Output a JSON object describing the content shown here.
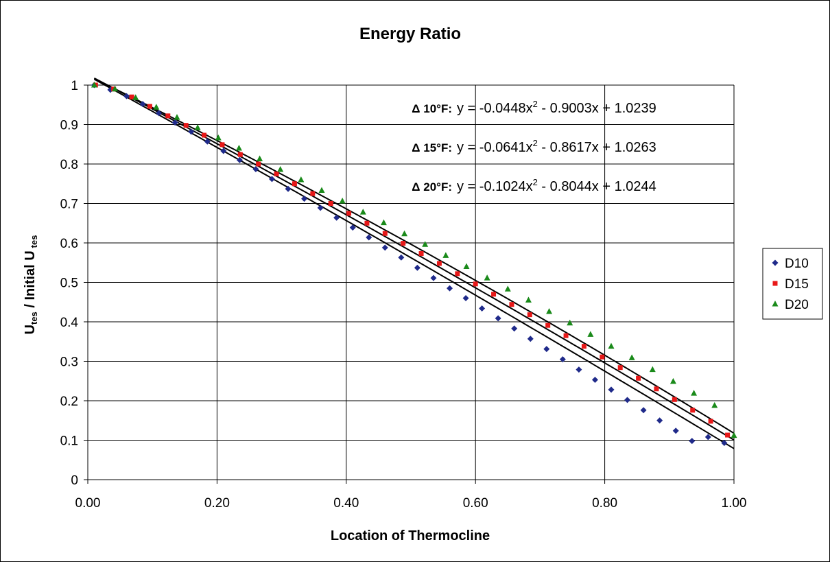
{
  "chart_data": {
    "type": "scatter",
    "title": "Energy Ratio",
    "xlabel": "Location of Thermocline",
    "ylabel": {
      "main1": "U",
      "sub1": "tes",
      "main2": " / Initial U",
      "sub2": "tes"
    },
    "xlim": [
      0,
      1
    ],
    "ylim": [
      0,
      1
    ],
    "x_ticks": [
      "0.00",
      "0.20",
      "0.40",
      "0.60",
      "0.80",
      "1.00"
    ],
    "y_ticks": [
      "0",
      "0.1",
      "0.2",
      "0.3",
      "0.4",
      "0.5",
      "0.6",
      "0.7",
      "0.8",
      "0.9",
      "1"
    ],
    "grid": true,
    "legend_position": "right",
    "series": [
      {
        "name": "D10",
        "marker": "diamond",
        "color": "#1f2a8a",
        "x": [
          0.01,
          0.035,
          0.06,
          0.085,
          0.11,
          0.135,
          0.16,
          0.185,
          0.21,
          0.235,
          0.26,
          0.285,
          0.31,
          0.335,
          0.36,
          0.385,
          0.41,
          0.435,
          0.46,
          0.485,
          0.51,
          0.535,
          0.56,
          0.585,
          0.61,
          0.635,
          0.66,
          0.685,
          0.71,
          0.735,
          0.76,
          0.785,
          0.81,
          0.835,
          0.86,
          0.885,
          0.91,
          0.935,
          0.96,
          0.985
        ],
        "y": [
          1.0,
          0.988,
          0.972,
          0.952,
          0.929,
          0.905,
          0.882,
          0.857,
          0.833,
          0.81,
          0.787,
          0.762,
          0.737,
          0.712,
          0.689,
          0.664,
          0.639,
          0.614,
          0.588,
          0.563,
          0.537,
          0.511,
          0.485,
          0.46,
          0.434,
          0.409,
          0.383,
          0.357,
          0.331,
          0.305,
          0.279,
          0.253,
          0.228,
          0.202,
          0.176,
          0.15,
          0.124,
          0.098,
          0.108,
          0.093
        ]
      },
      {
        "name": "D15",
        "marker": "square",
        "color": "#e81818",
        "x": [
          0.012,
          0.04,
          0.068,
          0.096,
          0.124,
          0.152,
          0.18,
          0.208,
          0.236,
          0.264,
          0.292,
          0.32,
          0.348,
          0.376,
          0.404,
          0.432,
          0.46,
          0.488,
          0.516,
          0.544,
          0.572,
          0.6,
          0.628,
          0.656,
          0.684,
          0.712,
          0.74,
          0.768,
          0.796,
          0.824,
          0.852,
          0.88,
          0.908,
          0.936,
          0.964,
          0.99
        ],
        "y": [
          1.0,
          0.99,
          0.97,
          0.946,
          0.922,
          0.898,
          0.873,
          0.849,
          0.824,
          0.8,
          0.775,
          0.75,
          0.725,
          0.7,
          0.675,
          0.65,
          0.624,
          0.599,
          0.573,
          0.548,
          0.522,
          0.496,
          0.47,
          0.444,
          0.418,
          0.391,
          0.365,
          0.338,
          0.311,
          0.284,
          0.257,
          0.23,
          0.203,
          0.176,
          0.148,
          0.113
        ]
      },
      {
        "name": "D20",
        "marker": "triangle",
        "color": "#1a8a1a",
        "x": [
          0.01,
          0.042,
          0.074,
          0.106,
          0.138,
          0.17,
          0.202,
          0.234,
          0.266,
          0.298,
          0.33,
          0.362,
          0.394,
          0.426,
          0.458,
          0.49,
          0.522,
          0.554,
          0.586,
          0.618,
          0.65,
          0.682,
          0.714,
          0.746,
          0.778,
          0.81,
          0.842,
          0.874,
          0.906,
          0.938,
          0.97,
          1.0
        ],
        "y": [
          1.0,
          0.99,
          0.968,
          0.944,
          0.918,
          0.892,
          0.866,
          0.84,
          0.813,
          0.786,
          0.76,
          0.733,
          0.706,
          0.678,
          0.651,
          0.623,
          0.596,
          0.568,
          0.54,
          0.511,
          0.483,
          0.455,
          0.426,
          0.397,
          0.368,
          0.338,
          0.309,
          0.279,
          0.249,
          0.219,
          0.188,
          0.112
        ]
      }
    ],
    "trendlines": [
      {
        "label": "Δ 10°F:",
        "a": -0.0448,
        "b": -0.9003,
        "c": 1.0239,
        "eq_main": "y = -0.0448x",
        "eq_sup": "2",
        "eq_rest": " - 0.9003x + 1.0239"
      },
      {
        "label": "Δ 15°F:",
        "a": -0.0641,
        "b": -0.8617,
        "c": 1.0263,
        "eq_main": "y = -0.0641x",
        "eq_sup": "2",
        "eq_rest": " - 0.8617x + 1.0263"
      },
      {
        "label": "Δ 20°F:",
        "a": -0.1024,
        "b": -0.8044,
        "c": 1.0244,
        "eq_main": "y = -0.1024x",
        "eq_sup": "2",
        "eq_rest": " - 0.8044x + 1.0244"
      }
    ]
  }
}
